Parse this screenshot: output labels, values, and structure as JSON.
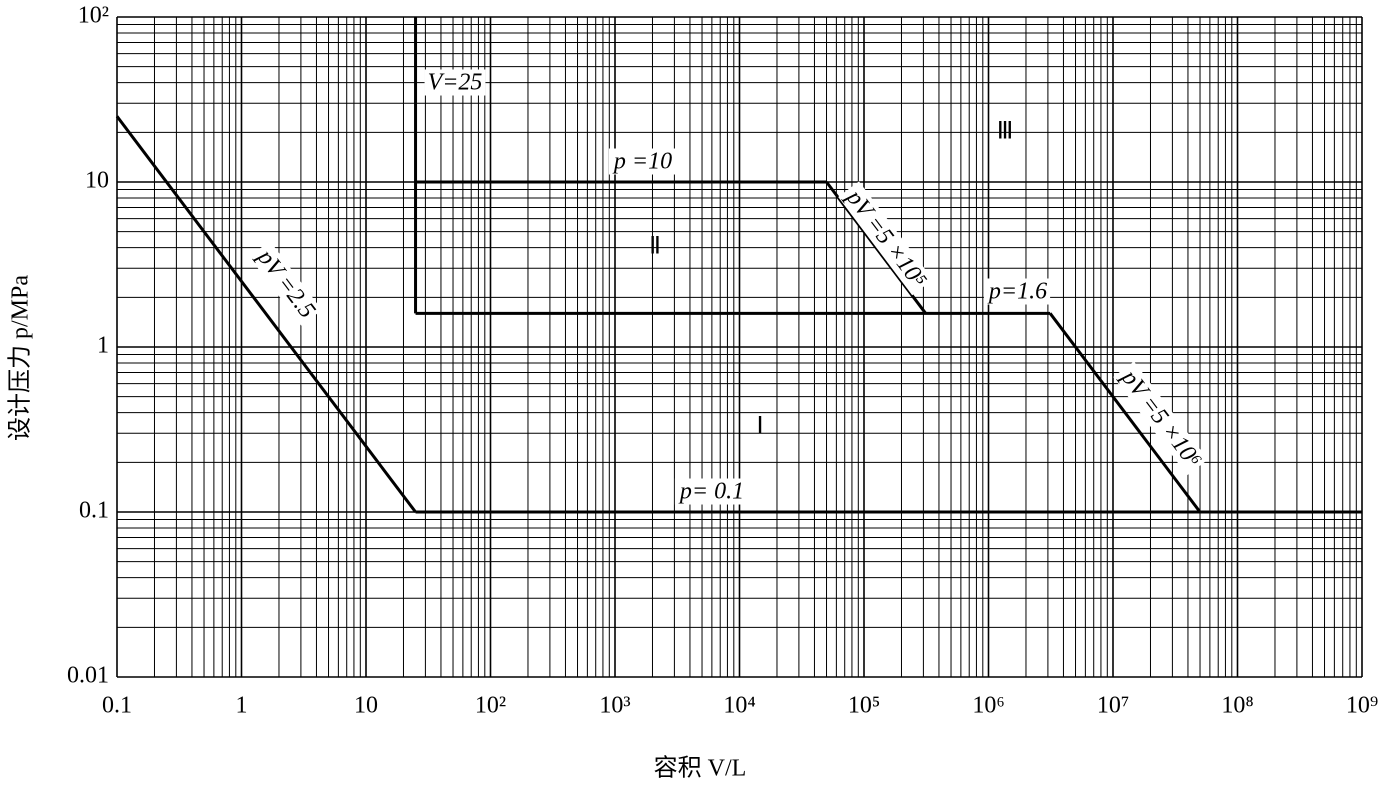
{
  "chart_data": {
    "type": "line",
    "log_x": true,
    "log_y": true,
    "grid": true,
    "minor_grid": true,
    "color": "#000000",
    "x_label": "容积 V/L",
    "y_label": "设计压力 p/MPa",
    "xlim": [
      0.1,
      1000000000
    ],
    "ylim": [
      0.01,
      100
    ],
    "xticks": [
      0.1,
      1,
      10,
      {
        "value": 100,
        "label": "10²"
      },
      {
        "value": 1000,
        "label": "10³"
      },
      {
        "value": 10000,
        "label": "10⁴"
      },
      {
        "value": 100000,
        "label": "10⁵"
      },
      {
        "value": 1000000,
        "label": "10⁶"
      },
      {
        "value": 10000000,
        "label": "10⁷"
      },
      {
        "value": 100000000,
        "label": "10⁸"
      },
      {
        "value": 1000000000,
        "label": "10⁹"
      }
    ],
    "yticks": [
      0.01,
      0.1,
      1,
      10,
      {
        "value": 100,
        "label": "10²"
      }
    ],
    "series": [
      {
        "x": [
          0.1,
          25
        ],
        "values": [
          25,
          0.1
        ]
      },
      {
        "x": [
          25,
          1000000000
        ],
        "values": [
          0.1,
          0.1
        ]
      },
      {
        "x": [
          25,
          25
        ],
        "values": [
          1.6,
          100
        ]
      },
      {
        "x": [
          25,
          50000
        ],
        "values": [
          10,
          10
        ]
      },
      {
        "x": [
          50000,
          312500
        ],
        "values": [
          10,
          1.6
        ]
      },
      {
        "x": [
          25,
          3125000
        ],
        "values": [
          1.6,
          1.6
        ]
      },
      {
        "x": [
          3125000,
          50000000
        ],
        "values": [
          1.6,
          0.1
        ]
      }
    ],
    "annotations": [
      "V=25",
      "p =10",
      "pV =2.5",
      "pV =5 ×10⁵",
      "p=1.6",
      "pV =5 ×10⁶",
      "p= 0.1",
      "Ⅲ",
      "Ⅱ",
      "Ⅰ"
    ]
  }
}
